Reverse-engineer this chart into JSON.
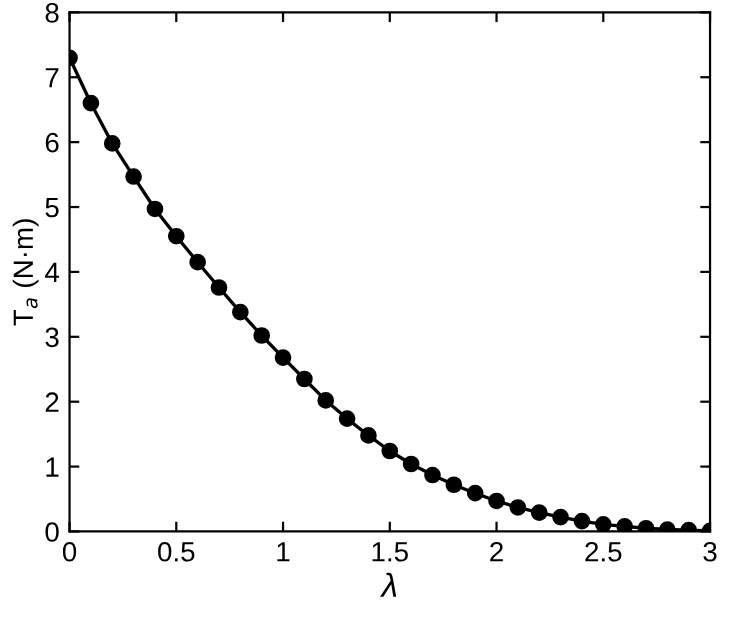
{
  "chart_data": {
    "type": "line",
    "xlabel": "λ",
    "ylabel": "T$_{a}$ (N·m)",
    "x": [
      0,
      0.1,
      0.2,
      0.3,
      0.4,
      0.5,
      0.6,
      0.7,
      0.8,
      0.9,
      1.0,
      1.1,
      1.2,
      1.3,
      1.4,
      1.5,
      1.6,
      1.7,
      1.8,
      1.9,
      2.0,
      2.1,
      2.2,
      2.3,
      2.4,
      2.5,
      2.6,
      2.7,
      2.8,
      2.9,
      3.0
    ],
    "series": [
      {
        "color": "#000000",
        "values": [
          7.3,
          6.6,
          5.98,
          5.47,
          4.97,
          4.55,
          4.15,
          3.76,
          3.38,
          3.02,
          2.68,
          2.35,
          2.02,
          1.74,
          1.48,
          1.24,
          1.04,
          0.87,
          0.72,
          0.59,
          0.47,
          0.37,
          0.29,
          0.22,
          0.16,
          0.11,
          0.08,
          0.05,
          0.03,
          0.02,
          0.01
        ]
      }
    ],
    "xlim": [
      0,
      3
    ],
    "xticks": [
      0,
      0.5,
      1,
      1.5,
      2,
      2.5,
      3
    ],
    "ylim": [
      0,
      8
    ],
    "yticks": [
      0,
      1,
      2,
      3,
      4,
      5,
      6,
      7,
      8
    ],
    "marker": "circle",
    "line_style": "solid",
    "grid": false,
    "legend": false
  }
}
